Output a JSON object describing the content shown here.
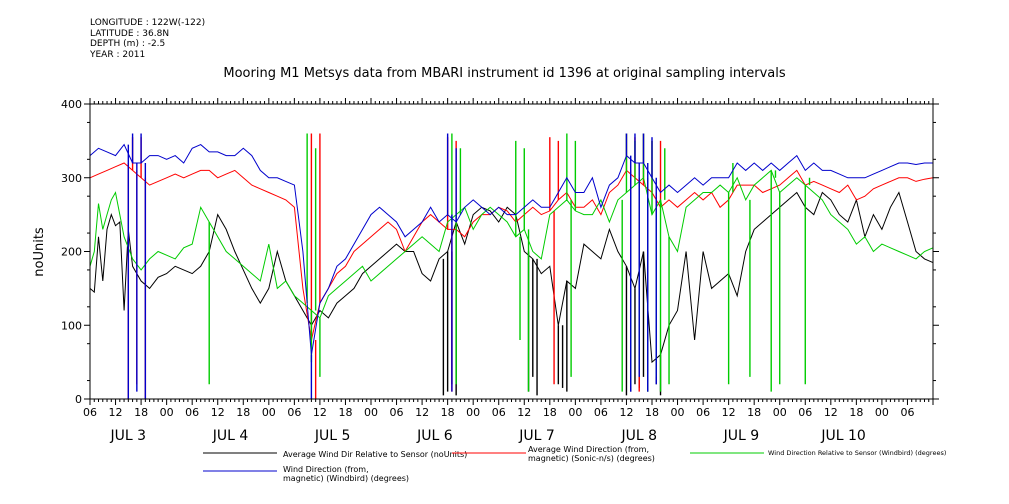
{
  "header": {
    "longitude": "LONGITUDE : 122W(-122)",
    "latitude": "LATITUDE : 36.8N",
    "depth": "DEPTH (m) : -2.5",
    "year": "YEAR : 2011"
  },
  "chart_data": {
    "type": "line",
    "title": "Mooring M1 Metsys data from MBARI instrument id 1396 at original sampling intervals",
    "ylabel": "noUnits",
    "xlabel": "",
    "ylim": [
      0,
      400
    ],
    "yticks": [
      0,
      100,
      200,
      300,
      400
    ],
    "xlim_hours": [
      0,
      198
    ],
    "hour_ticks": [
      "06",
      "12",
      "18",
      "00",
      "06",
      "12",
      "18",
      "00",
      "06",
      "12",
      "18",
      "00",
      "06",
      "12",
      "18",
      "00",
      "06",
      "12",
      "18",
      "00",
      "06",
      "12",
      "18",
      "00",
      "06",
      "12",
      "18",
      "00",
      "06",
      "12",
      "18",
      "00",
      "06"
    ],
    "day_labels": [
      {
        "label": "JUL  3",
        "h": 9
      },
      {
        "label": "JUL  4",
        "h": 33
      },
      {
        "label": "JUL  5",
        "h": 57
      },
      {
        "label": "JUL  6",
        "h": 81
      },
      {
        "label": "JUL  7",
        "h": 105
      },
      {
        "label": "JUL  8",
        "h": 129
      },
      {
        "label": "JUL  9",
        "h": 153
      },
      {
        "label": "JUL 10",
        "h": 177
      }
    ],
    "grid": false,
    "series": [
      {
        "name": "Average Wind Dir Relative to Sensor (noUnits)",
        "color": "#000000",
        "x": [
          0,
          1,
          2,
          3,
          4,
          5,
          6,
          7,
          8,
          9,
          10,
          12,
          14,
          16,
          18,
          20,
          22,
          24,
          26,
          28,
          30,
          32,
          34,
          36,
          38,
          40,
          42,
          44,
          46,
          48,
          50,
          52,
          54,
          56,
          58,
          60,
          62,
          64,
          66,
          68,
          70,
          72,
          74,
          76,
          78,
          80,
          82,
          84,
          86,
          88,
          90,
          92,
          94,
          96,
          98,
          100,
          102,
          104,
          106,
          108,
          110,
          112,
          114,
          116,
          118,
          120,
          122,
          124,
          126,
          128,
          130,
          132,
          134,
          136,
          138,
          140,
          142,
          144,
          146,
          148,
          150,
          152,
          154,
          156,
          158,
          160,
          162,
          164,
          166,
          168,
          170,
          172,
          174,
          176,
          178,
          180,
          182,
          184,
          186,
          188,
          190,
          192,
          194,
          196,
          198
        ],
        "values": [
          150,
          145,
          220,
          160,
          230,
          250,
          235,
          240,
          120,
          230,
          180,
          160,
          150,
          165,
          170,
          180,
          175,
          170,
          180,
          200,
          250,
          230,
          200,
          175,
          150,
          130,
          150,
          200,
          160,
          140,
          120,
          100,
          120,
          110,
          130,
          140,
          150,
          170,
          180,
          190,
          200,
          210,
          200,
          200,
          170,
          160,
          190,
          200,
          240,
          210,
          250,
          260,
          255,
          240,
          260,
          250,
          200,
          190,
          170,
          180,
          100,
          160,
          150,
          210,
          200,
          190,
          230,
          200,
          180,
          150,
          200,
          50,
          60,
          100,
          120,
          200,
          80,
          200,
          150,
          160,
          170,
          140,
          200,
          230,
          240,
          250,
          260,
          270,
          280,
          260,
          250,
          280,
          270,
          250,
          240,
          270,
          220,
          250,
          230,
          260,
          280,
          240,
          200,
          190,
          185
        ],
        "spikes": [
          [
            83,
            5
          ],
          [
            84,
            10
          ],
          [
            85,
            20
          ],
          [
            86,
            5
          ],
          [
            103,
            10
          ],
          [
            104,
            30
          ],
          [
            105,
            5
          ],
          [
            110,
            20
          ],
          [
            111,
            15
          ],
          [
            112,
            10
          ],
          [
            126,
            5
          ],
          [
            127,
            10
          ],
          [
            128,
            20
          ],
          [
            129,
            15
          ],
          [
            130,
            30
          ],
          [
            131,
            10
          ],
          [
            132,
            50
          ],
          [
            133,
            20
          ],
          [
            134,
            5
          ]
        ]
      },
      {
        "name": "Average Wind Direction (from, magnetic) (Sonic-n/s) (degrees)",
        "color": "#ff0000",
        "x": [
          0,
          2,
          4,
          6,
          8,
          10,
          12,
          14,
          16,
          18,
          20,
          22,
          24,
          26,
          28,
          30,
          32,
          34,
          36,
          38,
          40,
          42,
          44,
          46,
          48,
          50,
          52,
          54,
          56,
          58,
          60,
          62,
          64,
          66,
          68,
          70,
          72,
          74,
          76,
          78,
          80,
          82,
          84,
          86,
          88,
          90,
          92,
          94,
          96,
          98,
          100,
          102,
          104,
          106,
          108,
          110,
          112,
          114,
          116,
          118,
          120,
          122,
          124,
          126,
          128,
          130,
          132,
          134,
          136,
          138,
          140,
          142,
          144,
          146,
          148,
          150,
          152,
          154,
          156,
          158,
          160,
          162,
          164,
          166,
          168,
          170,
          172,
          174,
          176,
          178,
          180,
          182,
          184,
          186,
          188,
          190,
          192,
          194,
          196,
          198
        ],
        "values": [
          300,
          305,
          310,
          315,
          320,
          310,
          300,
          290,
          295,
          300,
          305,
          300,
          305,
          310,
          310,
          300,
          305,
          310,
          300,
          290,
          285,
          280,
          275,
          270,
          260,
          150,
          80,
          130,
          150,
          170,
          180,
          200,
          210,
          220,
          230,
          240,
          230,
          200,
          220,
          240,
          250,
          240,
          230,
          230,
          220,
          240,
          250,
          250,
          260,
          255,
          240,
          250,
          260,
          250,
          255,
          270,
          280,
          260,
          260,
          270,
          250,
          280,
          290,
          310,
          300,
          290,
          280,
          260,
          270,
          260,
          270,
          280,
          270,
          280,
          260,
          270,
          290,
          290,
          290,
          280,
          285,
          290,
          300,
          310,
          290,
          295,
          290,
          285,
          280,
          290,
          270,
          275,
          285,
          290,
          295,
          300,
          300,
          295,
          298,
          300
        ],
        "spikes": [
          [
            9,
            0
          ],
          [
            10,
            355
          ],
          [
            11,
            20
          ],
          [
            12,
            355
          ],
          [
            13,
            0
          ],
          [
            52,
            360
          ],
          [
            53,
            0
          ],
          [
            54,
            360
          ],
          [
            84,
            355
          ],
          [
            85,
            10
          ],
          [
            86,
            350
          ],
          [
            108,
            355
          ],
          [
            109,
            20
          ],
          [
            110,
            350
          ],
          [
            126,
            360
          ],
          [
            127,
            30
          ],
          [
            128,
            355
          ],
          [
            129,
            10
          ],
          [
            130,
            360
          ],
          [
            131,
            20
          ],
          [
            132,
            350
          ],
          [
            133,
            40
          ],
          [
            134,
            350
          ]
        ]
      },
      {
        "name": "Wind Direction Relative to Sensor (Windbird) (degrees)",
        "color": "#00cc00",
        "x": [
          0,
          1,
          2,
          3,
          4,
          5,
          6,
          7,
          8,
          10,
          12,
          14,
          16,
          18,
          20,
          22,
          24,
          26,
          28,
          30,
          32,
          34,
          36,
          38,
          40,
          42,
          44,
          46,
          48,
          50,
          52,
          54,
          56,
          58,
          60,
          62,
          64,
          66,
          68,
          70,
          72,
          74,
          76,
          78,
          80,
          82,
          84,
          86,
          88,
          90,
          92,
          94,
          96,
          98,
          100,
          102,
          104,
          106,
          108,
          110,
          112,
          114,
          116,
          118,
          120,
          122,
          124,
          126,
          128,
          130,
          132,
          134,
          136,
          138,
          140,
          142,
          144,
          146,
          148,
          150,
          152,
          154,
          156,
          158,
          160,
          162,
          164,
          166,
          168,
          170,
          172,
          174,
          176,
          178,
          180,
          182,
          184,
          186,
          188,
          190,
          192,
          194,
          196,
          198
        ],
        "values": [
          180,
          200,
          265,
          230,
          250,
          270,
          280,
          250,
          220,
          190,
          175,
          190,
          200,
          195,
          190,
          205,
          210,
          260,
          240,
          220,
          200,
          190,
          180,
          170,
          160,
          210,
          150,
          160,
          140,
          130,
          120,
          110,
          140,
          150,
          160,
          170,
          180,
          160,
          170,
          180,
          190,
          200,
          210,
          220,
          210,
          200,
          240,
          250,
          260,
          230,
          250,
          260,
          250,
          240,
          220,
          230,
          200,
          190,
          250,
          260,
          270,
          255,
          250,
          250,
          270,
          240,
          270,
          280,
          290,
          300,
          250,
          270,
          220,
          200,
          260,
          270,
          280,
          280,
          290,
          280,
          300,
          270,
          290,
          300,
          310,
          280,
          290,
          300,
          290,
          280,
          270,
          250,
          240,
          230,
          210,
          220,
          200,
          210,
          205,
          200,
          195,
          190,
          200,
          205
        ],
        "spikes": [
          [
            28,
            20
          ],
          [
            51,
            360
          ],
          [
            52,
            50
          ],
          [
            53,
            340
          ],
          [
            54,
            30
          ],
          [
            85,
            360
          ],
          [
            86,
            20
          ],
          [
            87,
            340
          ],
          [
            100,
            350
          ],
          [
            101,
            80
          ],
          [
            102,
            340
          ],
          [
            103,
            10
          ],
          [
            112,
            360
          ],
          [
            113,
            30
          ],
          [
            114,
            350
          ],
          [
            125,
            10
          ],
          [
            126,
            360
          ],
          [
            127,
            20
          ],
          [
            128,
            350
          ],
          [
            129,
            40
          ],
          [
            130,
            360
          ],
          [
            131,
            10
          ],
          [
            132,
            350
          ],
          [
            133,
            30
          ],
          [
            134,
            10
          ],
          [
            135,
            340
          ],
          [
            136,
            20
          ],
          [
            150,
            20
          ],
          [
            151,
            320
          ],
          [
            155,
            30
          ],
          [
            160,
            10
          ],
          [
            161,
            300
          ],
          [
            162,
            20
          ],
          [
            168,
            20
          ],
          [
            169,
            300
          ]
        ]
      },
      {
        "name": "Wind Direction (from, magnetic) (Windbird) (degrees)",
        "color": "#0000cc",
        "x": [
          0,
          2,
          4,
          6,
          8,
          10,
          12,
          14,
          16,
          18,
          20,
          22,
          24,
          26,
          28,
          30,
          32,
          34,
          36,
          38,
          40,
          42,
          44,
          46,
          48,
          50,
          52,
          54,
          56,
          58,
          60,
          62,
          64,
          66,
          68,
          70,
          72,
          74,
          76,
          78,
          80,
          82,
          84,
          86,
          88,
          90,
          92,
          94,
          96,
          98,
          100,
          102,
          104,
          106,
          108,
          110,
          112,
          114,
          116,
          118,
          120,
          122,
          124,
          126,
          128,
          130,
          132,
          134,
          136,
          138,
          140,
          142,
          144,
          146,
          148,
          150,
          152,
          154,
          156,
          158,
          160,
          162,
          164,
          166,
          168,
          170,
          172,
          174,
          176,
          178,
          180,
          182,
          184,
          186,
          188,
          190,
          192,
          194,
          196,
          198
        ],
        "values": [
          330,
          340,
          335,
          330,
          345,
          320,
          320,
          330,
          330,
          325,
          330,
          320,
          340,
          345,
          335,
          335,
          330,
          330,
          340,
          330,
          310,
          300,
          300,
          295,
          290,
          200,
          60,
          130,
          150,
          180,
          190,
          210,
          230,
          250,
          260,
          250,
          240,
          220,
          230,
          240,
          260,
          240,
          250,
          240,
          260,
          270,
          260,
          250,
          260,
          250,
          250,
          260,
          270,
          260,
          260,
          280,
          300,
          280,
          280,
          300,
          260,
          290,
          300,
          330,
          320,
          320,
          300,
          280,
          290,
          280,
          290,
          300,
          290,
          300,
          300,
          300,
          320,
          310,
          320,
          310,
          320,
          310,
          320,
          330,
          310,
          320,
          310,
          310,
          305,
          300,
          300,
          300,
          305,
          310,
          315,
          320,
          320,
          318,
          320,
          320
        ],
        "spikes": [
          [
            9,
            0
          ],
          [
            10,
            360
          ],
          [
            11,
            10
          ],
          [
            12,
            360
          ],
          [
            13,
            0
          ],
          [
            52,
            0
          ],
          [
            84,
            360
          ],
          [
            85,
            10
          ],
          [
            86,
            340
          ],
          [
            126,
            360
          ],
          [
            127,
            10
          ],
          [
            128,
            360
          ],
          [
            129,
            30
          ],
          [
            130,
            360
          ],
          [
            131,
            10
          ],
          [
            132,
            355
          ],
          [
            133,
            20
          ]
        ]
      }
    ]
  }
}
